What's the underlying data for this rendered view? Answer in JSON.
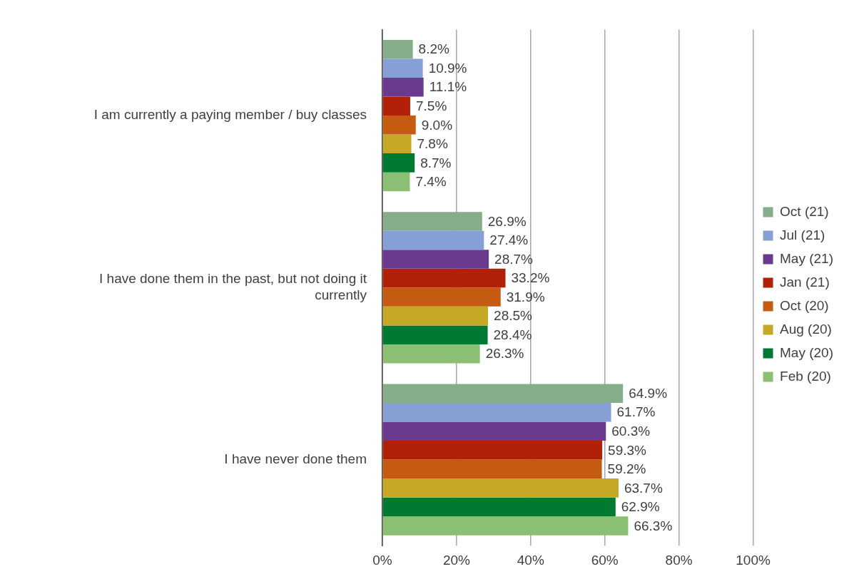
{
  "chart_data": {
    "type": "bar",
    "orientation": "horizontal",
    "categories": [
      "I am currently a paying member / buy classes",
      "I have done them in the past, but not doing it currently",
      "I have never done them"
    ],
    "series": [
      {
        "name": "Oct (21)",
        "color": "#86ad8a",
        "values": [
          8.2,
          26.9,
          64.9
        ],
        "value_labels": [
          "8.2%",
          "26.9%",
          "64.9%"
        ]
      },
      {
        "name": "Jul (21)",
        "color": "#86a0d6",
        "values": [
          10.9,
          27.4,
          61.7
        ],
        "value_labels": [
          "10.9%",
          "27.4%",
          "61.7%"
        ]
      },
      {
        "name": "May (21)",
        "color": "#6b3a8f",
        "values": [
          11.1,
          28.7,
          60.3
        ],
        "value_labels": [
          "11.1%",
          "28.7%",
          "60.3%"
        ]
      },
      {
        "name": "Jan (21)",
        "color": "#b22007",
        "values": [
          7.5,
          33.2,
          59.3
        ],
        "value_labels": [
          "7.5%",
          "33.2%",
          "59.3%"
        ]
      },
      {
        "name": "Oct (20)",
        "color": "#c55a11",
        "values": [
          9.0,
          31.9,
          59.2
        ],
        "value_labels": [
          "9.0%",
          "31.9%",
          "59.2%"
        ]
      },
      {
        "name": "Aug (20)",
        "color": "#c5a825",
        "values": [
          7.8,
          28.5,
          63.7
        ],
        "value_labels": [
          "7.8%",
          "28.5%",
          "63.7%"
        ]
      },
      {
        "name": "May (20)",
        "color": "#007a33",
        "values": [
          8.7,
          28.4,
          62.9
        ],
        "value_labels": [
          "8.7%",
          "28.4%",
          "62.9%"
        ]
      },
      {
        "name": "Feb (20)",
        "color": "#8bbf74",
        "values": [
          7.4,
          26.3,
          66.3
        ],
        "value_labels": [
          "7.4%",
          "26.3%",
          "66.3%"
        ]
      }
    ],
    "xlim": [
      0,
      100
    ],
    "xticks": [
      {
        "value": 0,
        "label": "0%"
      },
      {
        "value": 20,
        "label": "20%"
      },
      {
        "value": 40,
        "label": "40%"
      },
      {
        "value": 60,
        "label": "60%"
      },
      {
        "value": 80,
        "label": "80%"
      },
      {
        "value": 100,
        "label": "100%"
      }
    ],
    "grid": "x",
    "legend": "right"
  }
}
